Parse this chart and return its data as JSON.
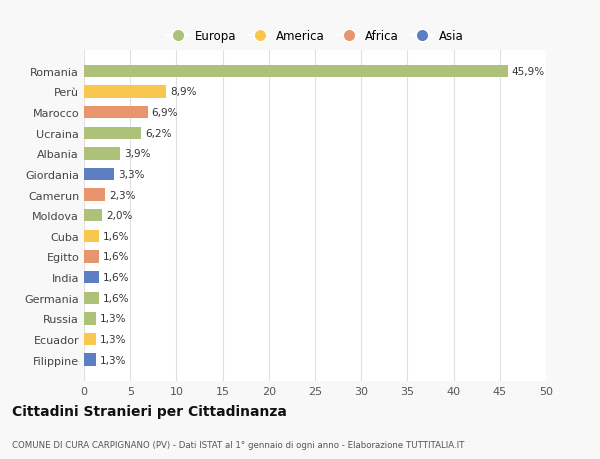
{
  "categories": [
    "Romania",
    "Perù",
    "Marocco",
    "Ucraina",
    "Albania",
    "Giordania",
    "Camerun",
    "Moldova",
    "Cuba",
    "Egitto",
    "India",
    "Germania",
    "Russia",
    "Ecuador",
    "Filippine"
  ],
  "values": [
    45.9,
    8.9,
    6.9,
    6.2,
    3.9,
    3.3,
    2.3,
    2.0,
    1.6,
    1.6,
    1.6,
    1.6,
    1.3,
    1.3,
    1.3
  ],
  "labels": [
    "45,9%",
    "8,9%",
    "6,9%",
    "6,2%",
    "3,9%",
    "3,3%",
    "2,3%",
    "2,0%",
    "1,6%",
    "1,6%",
    "1,6%",
    "1,6%",
    "1,3%",
    "1,3%",
    "1,3%"
  ],
  "colors": [
    "#adc178",
    "#f9c74f",
    "#e8956d",
    "#adc178",
    "#adc178",
    "#5b7fc1",
    "#e8956d",
    "#adc178",
    "#f9c74f",
    "#e8956d",
    "#5b7fc1",
    "#adc178",
    "#adc178",
    "#f9c74f",
    "#5b7fc1"
  ],
  "legend_labels": [
    "Europa",
    "America",
    "Africa",
    "Asia"
  ],
  "legend_colors": [
    "#adc178",
    "#f9c74f",
    "#e8956d",
    "#5b7fc1"
  ],
  "xlim": [
    0,
    50
  ],
  "xticks": [
    0,
    5,
    10,
    15,
    20,
    25,
    30,
    35,
    40,
    45,
    50
  ],
  "title": "Cittadini Stranieri per Cittadinanza",
  "subtitle": "COMUNE DI CURA CARPIGNANO (PV) - Dati ISTAT al 1° gennaio di ogni anno - Elaborazione TUTTITALIA.IT",
  "bg_color": "#f8f8f8",
  "bar_bg_color": "#ffffff",
  "grid_color": "#e0e0e0"
}
